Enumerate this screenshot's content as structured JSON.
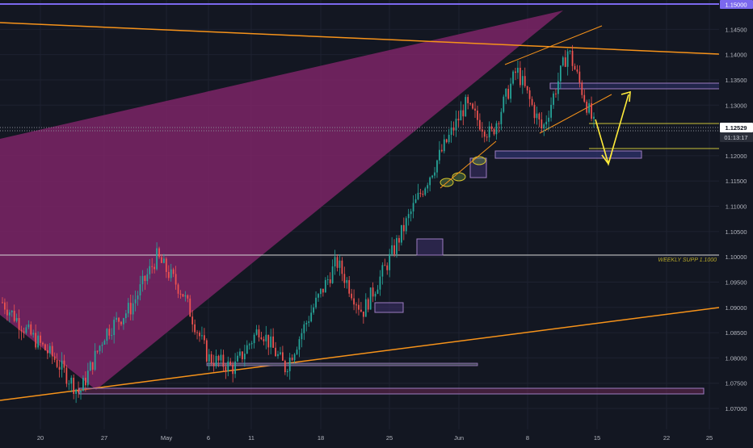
{
  "colors": {
    "background": "#131722",
    "grid": "#1e2230",
    "up": "#26a69a",
    "down": "#ef5350",
    "wedge": "#7d2466",
    "trend": "#f7931a",
    "yellow": "#ffeb3b",
    "box": "#9e7cc2",
    "axis_text": "#b2b5be",
    "top_line": "#7b68ee"
  },
  "price_axis": {
    "labels": [
      "1.14500",
      "1.14000",
      "1.13500",
      "1.13000",
      "1.12000",
      "1.11500",
      "1.11000",
      "1.10500",
      "1.10000",
      "1.09500",
      "1.09000",
      "1.08500",
      "1.08000",
      "1.07500",
      "1.07000"
    ],
    "top_price_tag": "1.15000",
    "current_price_tag": "1.12529",
    "countdown_tag": "01:13:17"
  },
  "time_axis": {
    "labels": [
      "20",
      "27",
      "May",
      "6",
      "11",
      "18",
      "25",
      "Jun",
      "8",
      "15",
      "22",
      "25"
    ]
  },
  "annotations": {
    "weekly_support": "WEEKLY SUPP 1.1000"
  },
  "chart_data": {
    "type": "candlestick",
    "title": "",
    "ylim": [
      1.0675,
      1.15
    ],
    "y_ticks": [
      1.07,
      1.075,
      1.08,
      1.085,
      1.09,
      1.095,
      1.1,
      1.105,
      1.11,
      1.115,
      1.12,
      1.13,
      1.135,
      1.14,
      1.145
    ],
    "x_ticks": [
      "20",
      "27",
      "May",
      "6",
      "11",
      "18",
      "25",
      "Jun",
      "8",
      "15",
      "22",
      "25"
    ],
    "current_price": 1.12529,
    "key_levels": {
      "weekly_support": 1.1,
      "top": 1.15
    },
    "swing_points": [
      1.091,
      1.085,
      1.08,
      1.073,
      1.085,
      1.09,
      1.1,
      1.093,
      1.08,
      1.078,
      1.086,
      1.078,
      1.089,
      1.099,
      1.089,
      1.099,
      1.11,
      1.12,
      1.13,
      1.124,
      1.137,
      1.125,
      1.141,
      1.126
    ]
  }
}
